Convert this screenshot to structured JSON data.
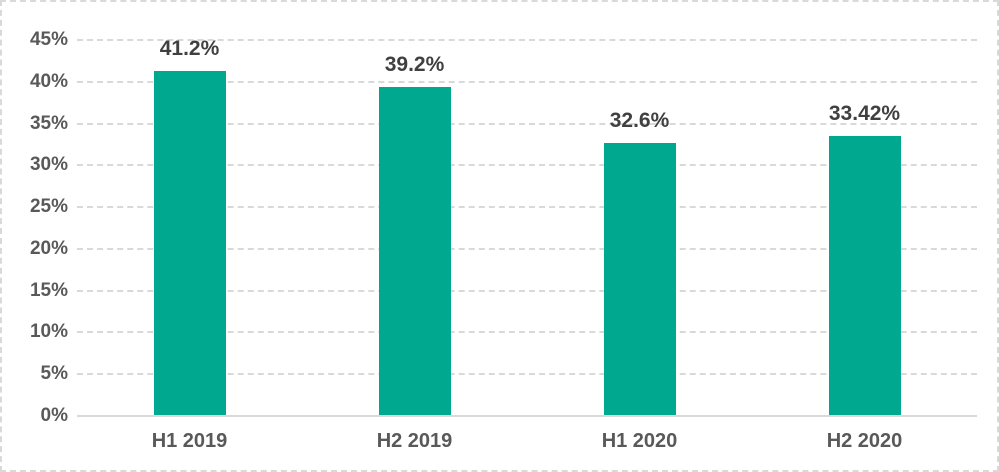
{
  "chart_data": {
    "type": "bar",
    "categories": [
      "H1 2019",
      "H2 2019",
      "H1 2020",
      "H2 2020"
    ],
    "values": [
      41.2,
      39.2,
      32.6,
      33.42
    ],
    "data_labels": [
      "41.2%",
      "39.2%",
      "32.6%",
      "33.42%"
    ],
    "title": "",
    "xlabel": "",
    "ylabel": "",
    "ylim": [
      0,
      45
    ],
    "y_tick_step": 5,
    "y_tick_labels": [
      "0%",
      "5%",
      "10%",
      "15%",
      "20%",
      "25%",
      "30%",
      "35%",
      "40%",
      "45%"
    ],
    "grid": "horizontal",
    "legend": "none",
    "bar_color": "#00A88F",
    "gridline_color": "#d9d9d9",
    "axis_label_color": "#595959",
    "data_label_color": "#404040"
  }
}
